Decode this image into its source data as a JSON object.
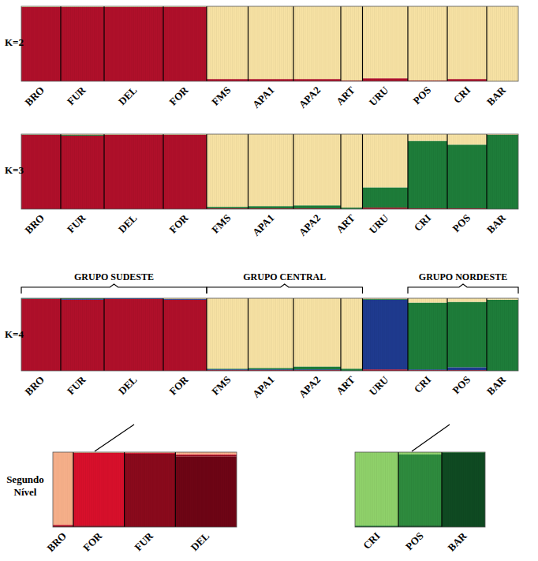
{
  "chart_data": {
    "type": "structure",
    "ylim": [
      0,
      1
    ],
    "tick_labels": false,
    "panels": [
      {
        "label": "K=2",
        "categories": [
          "BRO",
          "FUR",
          "DEL",
          "FOR",
          "FMS",
          "APA1",
          "APA2",
          "ART",
          "URU",
          "POS",
          "CRI",
          "BAR"
        ],
        "n": [
          20,
          22,
          30,
          22,
          21,
          23,
          24,
          11,
          23,
          20,
          20,
          16
        ],
        "series": [
          {
            "color": "#b0102a",
            "values": [
              0.99,
              0.99,
              0.99,
              0.99,
              0.03,
              0.03,
              0.03,
              0.01,
              0.04,
              0.01,
              0.03,
              0.0
            ]
          },
          {
            "color": "#f7e2a4",
            "values": [
              0.01,
              0.01,
              0.01,
              0.01,
              0.97,
              0.97,
              0.97,
              0.99,
              0.96,
              0.99,
              0.97,
              1.0
            ]
          }
        ]
      },
      {
        "label": "K=3",
        "categories": [
          "BRO",
          "FUR",
          "DEL",
          "FOR",
          "FMS",
          "APA1",
          "APA2",
          "ART",
          "URU",
          "CRI",
          "POS",
          "BAR"
        ],
        "n": [
          20,
          22,
          30,
          22,
          21,
          23,
          24,
          11,
          23,
          20,
          20,
          16
        ],
        "series": [
          {
            "color": "#b0102a",
            "values": [
              0.99,
              0.98,
              0.99,
              0.99,
              0.01,
              0.01,
              0.01,
              0.0,
              0.02,
              0.01,
              0.01,
              0.0
            ]
          },
          {
            "color": "#1e7d3a",
            "values": [
              0.005,
              0.01,
              0.0,
              0.0,
              0.02,
              0.03,
              0.04,
              0.02,
              0.27,
              0.9,
              0.85,
              0.99
            ]
          },
          {
            "color": "#f7e2a4",
            "values": [
              0.005,
              0.01,
              0.01,
              0.01,
              0.97,
              0.96,
              0.95,
              0.98,
              0.71,
              0.09,
              0.14,
              0.01
            ]
          }
        ]
      },
      {
        "label": "K=4",
        "categories": [
          "BRO",
          "FUR",
          "DEL",
          "FOR",
          "FMS",
          "APA1",
          "APA2",
          "ART",
          "URU",
          "CRI",
          "POS",
          "BAR"
        ],
        "n": [
          20,
          22,
          30,
          22,
          21,
          23,
          24,
          11,
          23,
          20,
          20,
          16
        ],
        "series": [
          {
            "color": "#b0102a",
            "values": [
              0.99,
              0.98,
              0.99,
              0.98,
              0.01,
              0.01,
              0.01,
              0.0,
              0.02,
              0.01,
              0.01,
              0.0
            ]
          },
          {
            "color": "#1f3b8f",
            "values": [
              0.005,
              0.01,
              0.01,
              0.01,
              0.01,
              0.01,
              0.01,
              0.0,
              0.96,
              0.01,
              0.04,
              0.0
            ]
          },
          {
            "color": "#1e7d3a",
            "values": [
              0.005,
              0.01,
              0.0,
              0.0,
              0.01,
              0.02,
              0.04,
              0.03,
              0.01,
              0.92,
              0.9,
              0.98
            ]
          },
          {
            "color": "#f7e2a4",
            "values": [
              0.0,
              0.0,
              0.0,
              0.01,
              0.97,
              0.96,
              0.94,
              0.97,
              0.01,
              0.06,
              0.05,
              0.02
            ]
          }
        ],
        "groups": [
          {
            "label": "GRUPO SUDESTE",
            "from": "BRO",
            "to": "FOR"
          },
          {
            "label": "GRUPO CENTRAL",
            "from": "FMS",
            "to": "ART"
          },
          {
            "label": "GRUPO NORDESTE",
            "from": "CRI",
            "to": "BAR"
          }
        ]
      },
      {
        "label": "Segundo Nível",
        "categories": [
          "BRO",
          "FOR",
          "FUR",
          "DEL"
        ],
        "n": [
          10,
          25,
          25,
          30
        ],
        "series": [
          {
            "color": "#6e0515",
            "values": [
              0.01,
              0.01,
              0.01,
              0.94
            ]
          },
          {
            "color": "#8a0a1c",
            "values": [
              0.01,
              0.01,
              0.97,
              0.02
            ]
          },
          {
            "color": "#d8102b",
            "values": [
              0.01,
              0.97,
              0.01,
              0.01
            ]
          },
          {
            "color": "#f7b08a",
            "values": [
              0.97,
              0.01,
              0.01,
              0.03
            ]
          }
        ]
      },
      {
        "categories": [
          "CRI",
          "POS",
          "BAR"
        ],
        "n": [
          20,
          20,
          20
        ],
        "series": [
          {
            "color": "#0f4a22",
            "values": [
              0.01,
              0.02,
              0.99
            ]
          },
          {
            "color": "#2e8b3e",
            "values": [
              0.01,
              0.95,
              0.01
            ]
          },
          {
            "color": "#8fd16a",
            "values": [
              0.98,
              0.03,
              0.0
            ]
          }
        ]
      }
    ]
  }
}
